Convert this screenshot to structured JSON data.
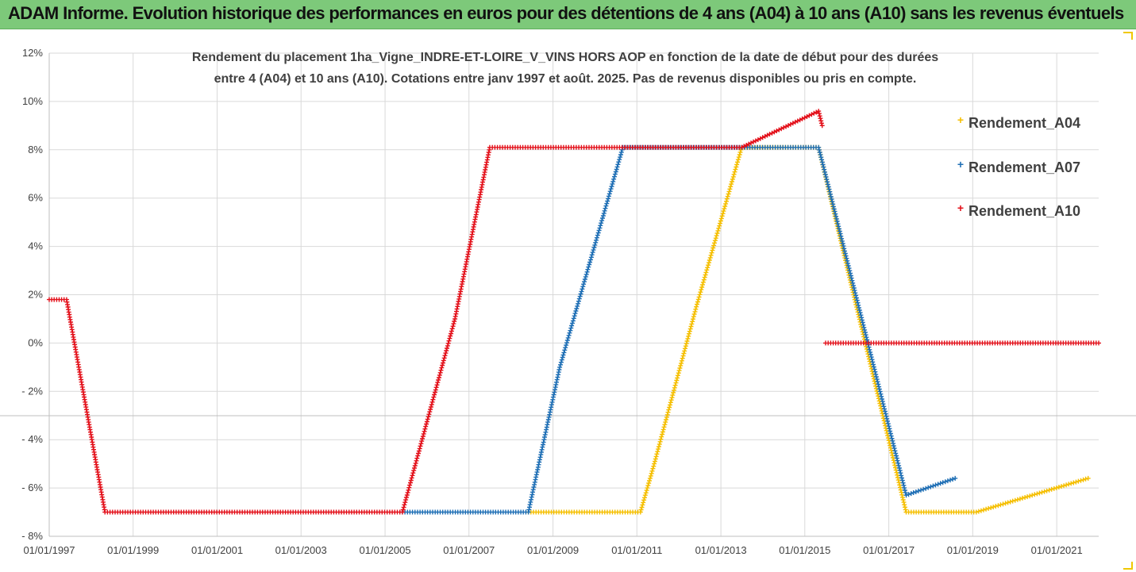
{
  "banner": {
    "title": "ADAM Informe. Evolution historique des performances en euros pour des détentions de 4 ans (A04) à 10 ans (A10) sans les revenus éventuels"
  },
  "colors": {
    "banner_bg": "#7dc97a",
    "A04": "#f5bf00",
    "A07": "#1f6fb5",
    "A10": "#e3101a",
    "grid": "#d9d9d9",
    "text": "#404040"
  },
  "chart_data": {
    "type": "scatter",
    "title": "Rendement du placement 1ha_Vigne_INDRE-ET-LOIRE_V_VINS HORS AOP en fonction de la date de début pour des durées",
    "subtitle": "entre 4 (A04) et 10 ans (A10). Cotations entre janv 1997 et août. 2025. Pas de revenus disponibles ou pris en compte.",
    "xlabel": "",
    "ylabel": "",
    "x_type": "date",
    "xlim": [
      "1997-01-01",
      "2022-01-01"
    ],
    "ylim": [
      -8,
      12
    ],
    "y_unit": "%",
    "grid": true,
    "legend_position": "right",
    "x_ticks": [
      "01/01/1997",
      "01/01/1999",
      "01/01/2001",
      "01/01/2003",
      "01/01/2005",
      "01/01/2007",
      "01/01/2009",
      "01/01/2011",
      "01/01/2013",
      "01/01/2015",
      "01/01/2017",
      "01/01/2019",
      "01/01/2021"
    ],
    "y_ticks": [
      "12%",
      "10%",
      "8%",
      "6%",
      "4%",
      "2%",
      "0%",
      "- 2%",
      "- 4%",
      "- 6%",
      "- 8%"
    ],
    "series": [
      {
        "name": "Rendement_A04",
        "color": "#f5bf00",
        "points": [
          [
            "2008-06-01",
            -7.0
          ],
          [
            "2011-02-01",
            -7.0
          ],
          [
            "2011-06-01",
            -5.0
          ],
          [
            "2012-06-01",
            1.5
          ],
          [
            "2013-07-01",
            8.1
          ],
          [
            "2015-05-01",
            8.1
          ],
          [
            "2016-03-01",
            2.0
          ],
          [
            "2017-06-01",
            -7.0
          ],
          [
            "2019-02-01",
            -7.0
          ],
          [
            "2021-10-01",
            -5.6
          ]
        ]
      },
      {
        "name": "Rendement_A07",
        "color": "#1f6fb5",
        "points": [
          [
            "2005-06-01",
            -7.0
          ],
          [
            "2008-06-01",
            -7.0
          ],
          [
            "2009-03-01",
            -1.0
          ],
          [
            "2010-09-01",
            8.1
          ],
          [
            "2015-05-01",
            8.1
          ],
          [
            "2017-06-01",
            -6.3
          ],
          [
            "2018-08-01",
            -5.6
          ]
        ]
      },
      {
        "name": "Rendement_A10",
        "color": "#e3101a",
        "points": [
          [
            "1997-01-01",
            1.8
          ],
          [
            "1997-06-01",
            1.8
          ],
          [
            "1998-05-01",
            -7.0
          ],
          [
            "2005-06-01",
            -7.0
          ],
          [
            "2006-09-01",
            1.0
          ],
          [
            "2007-07-01",
            8.1
          ],
          [
            "2013-07-01",
            8.1
          ],
          [
            "2015-05-01",
            9.6
          ],
          [
            "2015-06-01",
            9.0
          ]
        ],
        "extra_segment": [
          [
            "2015-07-01",
            0.0
          ],
          [
            "2022-01-01",
            0.0
          ]
        ]
      }
    ]
  }
}
